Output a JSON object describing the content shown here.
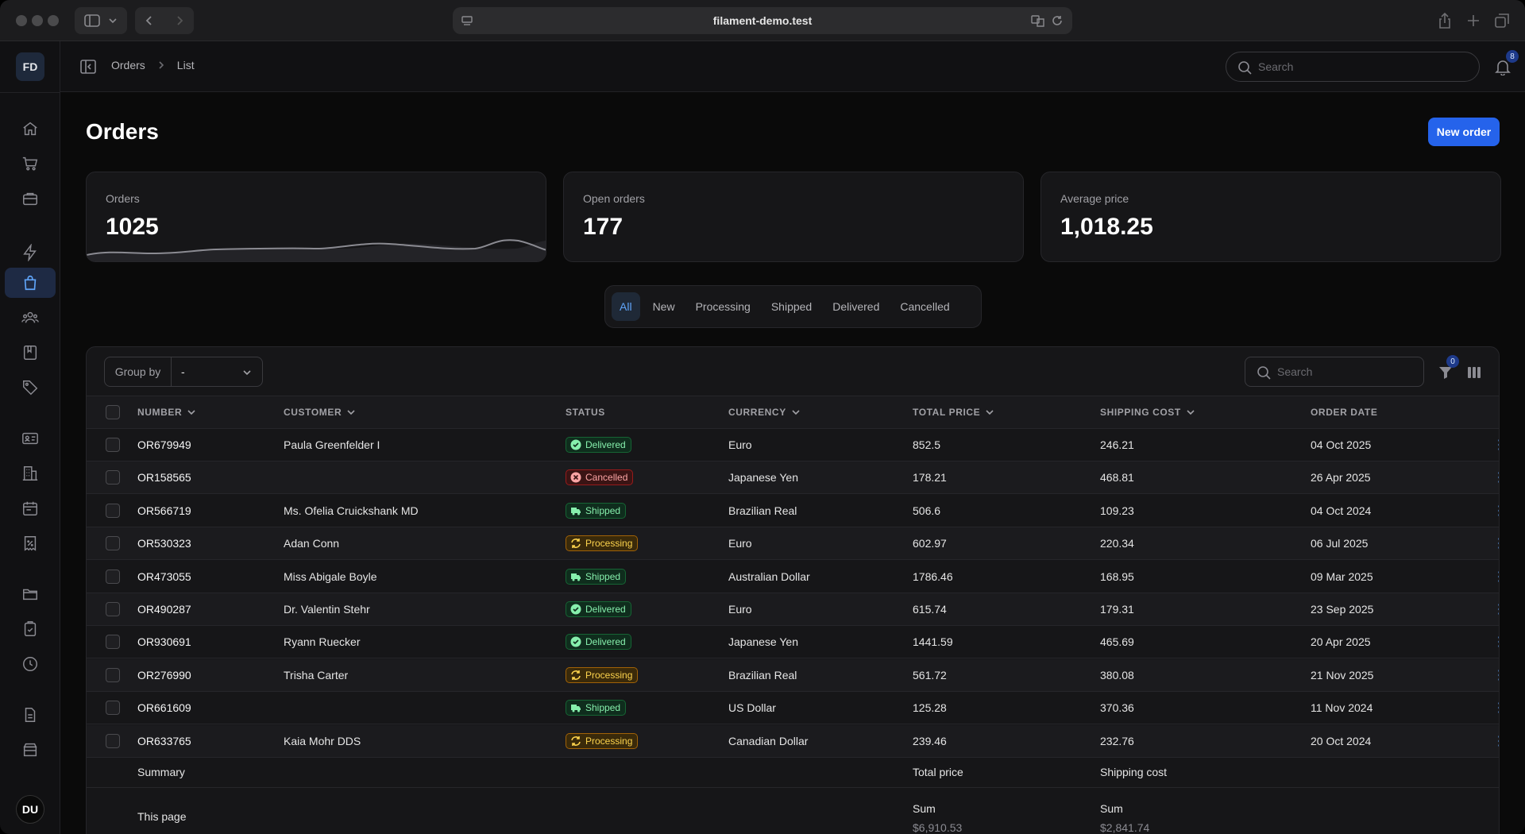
{
  "browser": {
    "url": "filament-demo.test"
  },
  "sidebar": {
    "brand": "FD",
    "user_initials": "DU",
    "items": [
      {
        "icon": "home-icon"
      },
      {
        "icon": "cart-icon"
      },
      {
        "icon": "briefcase-icon"
      },
      {
        "icon": "bolt-icon"
      },
      {
        "icon": "shopping-bag-icon",
        "active": true
      },
      {
        "icon": "users-icon"
      },
      {
        "icon": "book-icon"
      },
      {
        "icon": "tag-icon"
      },
      {
        "icon": "id-card-icon"
      },
      {
        "icon": "building-icon"
      },
      {
        "icon": "calendar-icon"
      },
      {
        "icon": "receipt-percent-icon"
      },
      {
        "icon": "folder-icon"
      },
      {
        "icon": "clipboard-check-icon"
      },
      {
        "icon": "clock-icon"
      },
      {
        "icon": "document-icon"
      },
      {
        "icon": "archive-icon"
      }
    ]
  },
  "topbar": {
    "breadcrumb": [
      "Orders",
      "List"
    ],
    "search_placeholder": "Search",
    "notifications_count": "8"
  },
  "page": {
    "title": "Orders",
    "new_button": "New order"
  },
  "stats": [
    {
      "label": "Orders",
      "value": "1025"
    },
    {
      "label": "Open orders",
      "value": "177"
    },
    {
      "label": "Average price",
      "value": "1,018.25"
    }
  ],
  "tabs": [
    "All",
    "New",
    "Processing",
    "Shipped",
    "Delivered",
    "Cancelled"
  ],
  "table": {
    "group_by_label": "Group by",
    "group_by_value": "-",
    "search_placeholder": "Search",
    "filter_count": "0",
    "columns": [
      "NUMBER",
      "CUSTOMER",
      "STATUS",
      "CURRENCY",
      "TOTAL PRICE",
      "SHIPPING COST",
      "ORDER DATE"
    ],
    "rows": [
      {
        "number": "OR679949",
        "customer": "Paula Greenfelder I",
        "status": "Delivered",
        "currency": "Euro",
        "total": "852.5",
        "shipping": "246.21",
        "date": "04 Oct 2025"
      },
      {
        "number": "OR158565",
        "customer": "",
        "status": "Cancelled",
        "currency": "Japanese Yen",
        "total": "178.21",
        "shipping": "468.81",
        "date": "26 Apr 2025"
      },
      {
        "number": "OR566719",
        "customer": "Ms. Ofelia Cruickshank MD",
        "status": "Shipped",
        "currency": "Brazilian Real",
        "total": "506.6",
        "shipping": "109.23",
        "date": "04 Oct 2024"
      },
      {
        "number": "OR530323",
        "customer": "Adan Conn",
        "status": "Processing",
        "currency": "Euro",
        "total": "602.97",
        "shipping": "220.34",
        "date": "06 Jul 2025"
      },
      {
        "number": "OR473055",
        "customer": "Miss Abigale Boyle",
        "status": "Shipped",
        "currency": "Australian Dollar",
        "total": "1786.46",
        "shipping": "168.95",
        "date": "09 Mar 2025"
      },
      {
        "number": "OR490287",
        "customer": "Dr. Valentin Stehr",
        "status": "Delivered",
        "currency": "Euro",
        "total": "615.74",
        "shipping": "179.31",
        "date": "23 Sep 2025"
      },
      {
        "number": "OR930691",
        "customer": "Ryann Ruecker",
        "status": "Delivered",
        "currency": "Japanese Yen",
        "total": "1441.59",
        "shipping": "465.69",
        "date": "20 Apr 2025"
      },
      {
        "number": "OR276990",
        "customer": "Trisha Carter",
        "status": "Processing",
        "currency": "Brazilian Real",
        "total": "561.72",
        "shipping": "380.08",
        "date": "21 Nov 2025"
      },
      {
        "number": "OR661609",
        "customer": "",
        "status": "Shipped",
        "currency": "US Dollar",
        "total": "125.28",
        "shipping": "370.36",
        "date": "11 Nov 2024"
      },
      {
        "number": "OR633765",
        "customer": "Kaia Mohr DDS",
        "status": "Processing",
        "currency": "Canadian Dollar",
        "total": "239.46",
        "shipping": "232.76",
        "date": "20 Oct 2024"
      }
    ],
    "summary": {
      "label": "Summary",
      "total_label": "Total price",
      "shipping_label": "Shipping cost",
      "page_label": "This page",
      "sum_label": "Sum",
      "total_sum": "$6,910.53",
      "shipping_sum": "$2,841.74"
    }
  },
  "colors": {
    "accent": "#2563eb",
    "delivered": "#86efac",
    "cancelled": "#fca5a5",
    "processing": "#fcd34d"
  }
}
